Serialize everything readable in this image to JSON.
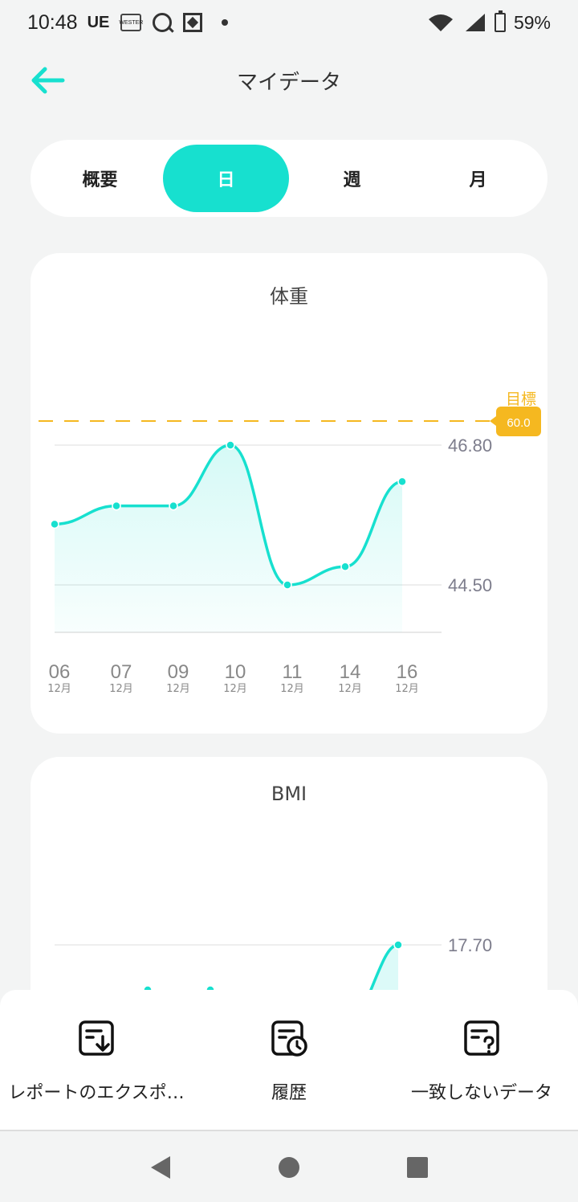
{
  "status_bar": {
    "time": "10:48",
    "carrier": "UE",
    "box_icon_text": "WESTER",
    "battery": "59%"
  },
  "header": {
    "title": "マイデータ"
  },
  "tabs": [
    {
      "label": "概要",
      "active": false
    },
    {
      "label": "日",
      "active": true
    },
    {
      "label": "週",
      "active": false
    },
    {
      "label": "月",
      "active": false
    }
  ],
  "weight_card": {
    "title": "体重",
    "goal_label": "目標",
    "goal_value": "60.0",
    "y_tick_high": "46.80",
    "y_tick_low": "44.50",
    "x_days": [
      "06",
      "07",
      "09",
      "10",
      "11",
      "14",
      "16"
    ],
    "x_month": "12月"
  },
  "bmi_card": {
    "title": "BMI",
    "y_tick_high": "17.70"
  },
  "chart_data": [
    {
      "type": "area",
      "title": "体重",
      "categories": [
        "06 12月",
        "07 12月",
        "09 12月",
        "10 12月",
        "11 12月",
        "14 12月",
        "16 12月"
      ],
      "series": [
        {
          "values": [
            45.5,
            45.8,
            45.8,
            46.8,
            44.5,
            44.8,
            46.2
          ]
        }
      ],
      "y_ticks": [
        44.5,
        46.8
      ],
      "goal_line": 60.0,
      "colors": {
        "line": "#17e0cf",
        "goal": "#f5b820"
      }
    },
    {
      "type": "area",
      "title": "BMI",
      "y_ticks": [
        17.7
      ],
      "colors": {
        "line": "#17e0cf"
      }
    }
  ],
  "actions": [
    {
      "label": "レポートのエクスポ…",
      "icon": "export-report-icon"
    },
    {
      "label": "履歴",
      "icon": "history-icon"
    },
    {
      "label": "一致しないデータ",
      "icon": "unmatched-data-icon"
    }
  ],
  "colors": {
    "accent": "#17e0cf",
    "goal": "#f5b820"
  }
}
